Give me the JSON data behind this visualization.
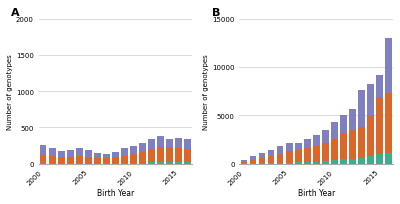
{
  "years": [
    2000,
    2001,
    2002,
    2003,
    2004,
    2005,
    2006,
    2007,
    2008,
    2009,
    2010,
    2011,
    2012,
    2013,
    2014,
    2015,
    2016
  ],
  "panel_A": {
    "green": [
      8,
      8,
      6,
      6,
      8,
      7,
      6,
      6,
      6,
      8,
      10,
      12,
      18,
      28,
      28,
      28,
      22
    ],
    "orange": [
      115,
      95,
      85,
      90,
      95,
      82,
      72,
      68,
      78,
      98,
      118,
      148,
      185,
      198,
      195,
      190,
      182
    ],
    "purple": [
      135,
      105,
      88,
      92,
      105,
      92,
      66,
      62,
      82,
      112,
      108,
      118,
      135,
      148,
      110,
      138,
      140
    ],
    "ylim": [
      0,
      2000
    ],
    "yticks": [
      0,
      500,
      1000,
      1500,
      2000
    ],
    "ylabel": "Number of genotypes",
    "xlabel": "Birth Year",
    "label": "A"
  },
  "panel_B": {
    "green": [
      15,
      30,
      50,
      65,
      80,
      100,
      120,
      170,
      210,
      270,
      360,
      430,
      520,
      600,
      780,
      950,
      1050
    ],
    "orange": [
      180,
      370,
      550,
      730,
      900,
      1150,
      1250,
      1450,
      1650,
      1850,
      2200,
      2700,
      2900,
      3200,
      4100,
      5800,
      6200
    ],
    "purple": [
      220,
      350,
      540,
      650,
      820,
      900,
      800,
      900,
      1100,
      1400,
      1700,
      1850,
      2200,
      3800,
      3300,
      2400,
      5700
    ],
    "ylim": [
      0,
      15000
    ],
    "yticks": [
      0,
      5000,
      10000,
      15000
    ],
    "ylabel": "Number of genotypes",
    "xlabel": "Birth Year",
    "label": "B"
  },
  "colors": {
    "green": "#3dae8c",
    "orange": "#d9672a",
    "purple": "#8080c0"
  },
  "bg_color": "#ffffff",
  "grid_color": "#cccccc"
}
